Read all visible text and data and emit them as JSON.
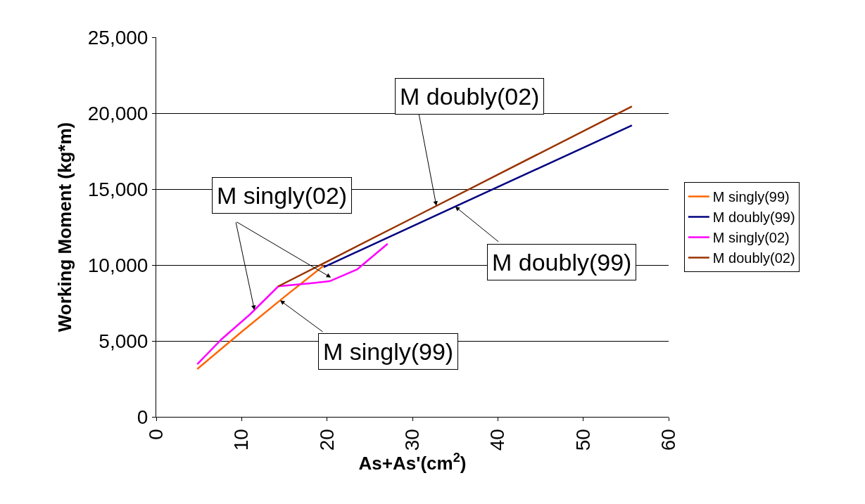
{
  "chart_data": {
    "type": "line",
    "xlabel": "As+As'(cm$^{2}$)",
    "ylabel": "Working Moment (kg*m)",
    "xlim": [
      0,
      60
    ],
    "xticks": [
      0,
      10,
      20,
      30,
      40,
      50,
      60
    ],
    "ylim": [
      0,
      25000
    ],
    "yticks": [
      {
        "value": 0,
        "label": "0"
      },
      {
        "value": 5000,
        "label": "5,000"
      },
      {
        "value": 10000,
        "label": "10,000"
      },
      {
        "value": 15000,
        "label": "15,000"
      },
      {
        "value": 20000,
        "label": "20,000"
      },
      {
        "value": 25000,
        "label": "25,000"
      }
    ],
    "grid": "y",
    "legend": "right",
    "marker": "none",
    "line_style": "solid",
    "series": [
      {
        "name": "M singly(99)",
        "color": "#ff6600",
        "x": [
          4.8,
          10,
          15,
          19.6
        ],
        "values": [
          3150,
          5600,
          7900,
          9950
        ]
      },
      {
        "name": "M doubly(99)",
        "color": "#000080",
        "x": [
          19.6,
          35,
          55.7
        ],
        "values": [
          9860,
          13850,
          19200
        ]
      },
      {
        "name": "M singly(02)",
        "color": "#ff00ff",
        "x": [
          4.8,
          7.7,
          11,
          14.3,
          18.1,
          20.3,
          23.5,
          27.1
        ],
        "values": [
          3470,
          5140,
          6760,
          8600,
          8800,
          8930,
          9700,
          11400
        ]
      },
      {
        "name": "M doubly(02)",
        "color": "#993300",
        "x": [
          14.3,
          20,
          30,
          55.7
        ],
        "values": [
          8600,
          10230,
          13090,
          20450
        ]
      }
    ],
    "annotations": [
      {
        "text": "M doubly(02)",
        "x": 32.8,
        "y": 13900
      },
      {
        "text": "M doubly(99)",
        "x": 35,
        "y": 13850
      },
      {
        "text": "M singly(02)",
        "x": 11.5,
        "y": 7040
      },
      {
        "text": "M singly(99)",
        "x": 14.5,
        "y": 7670
      }
    ]
  }
}
